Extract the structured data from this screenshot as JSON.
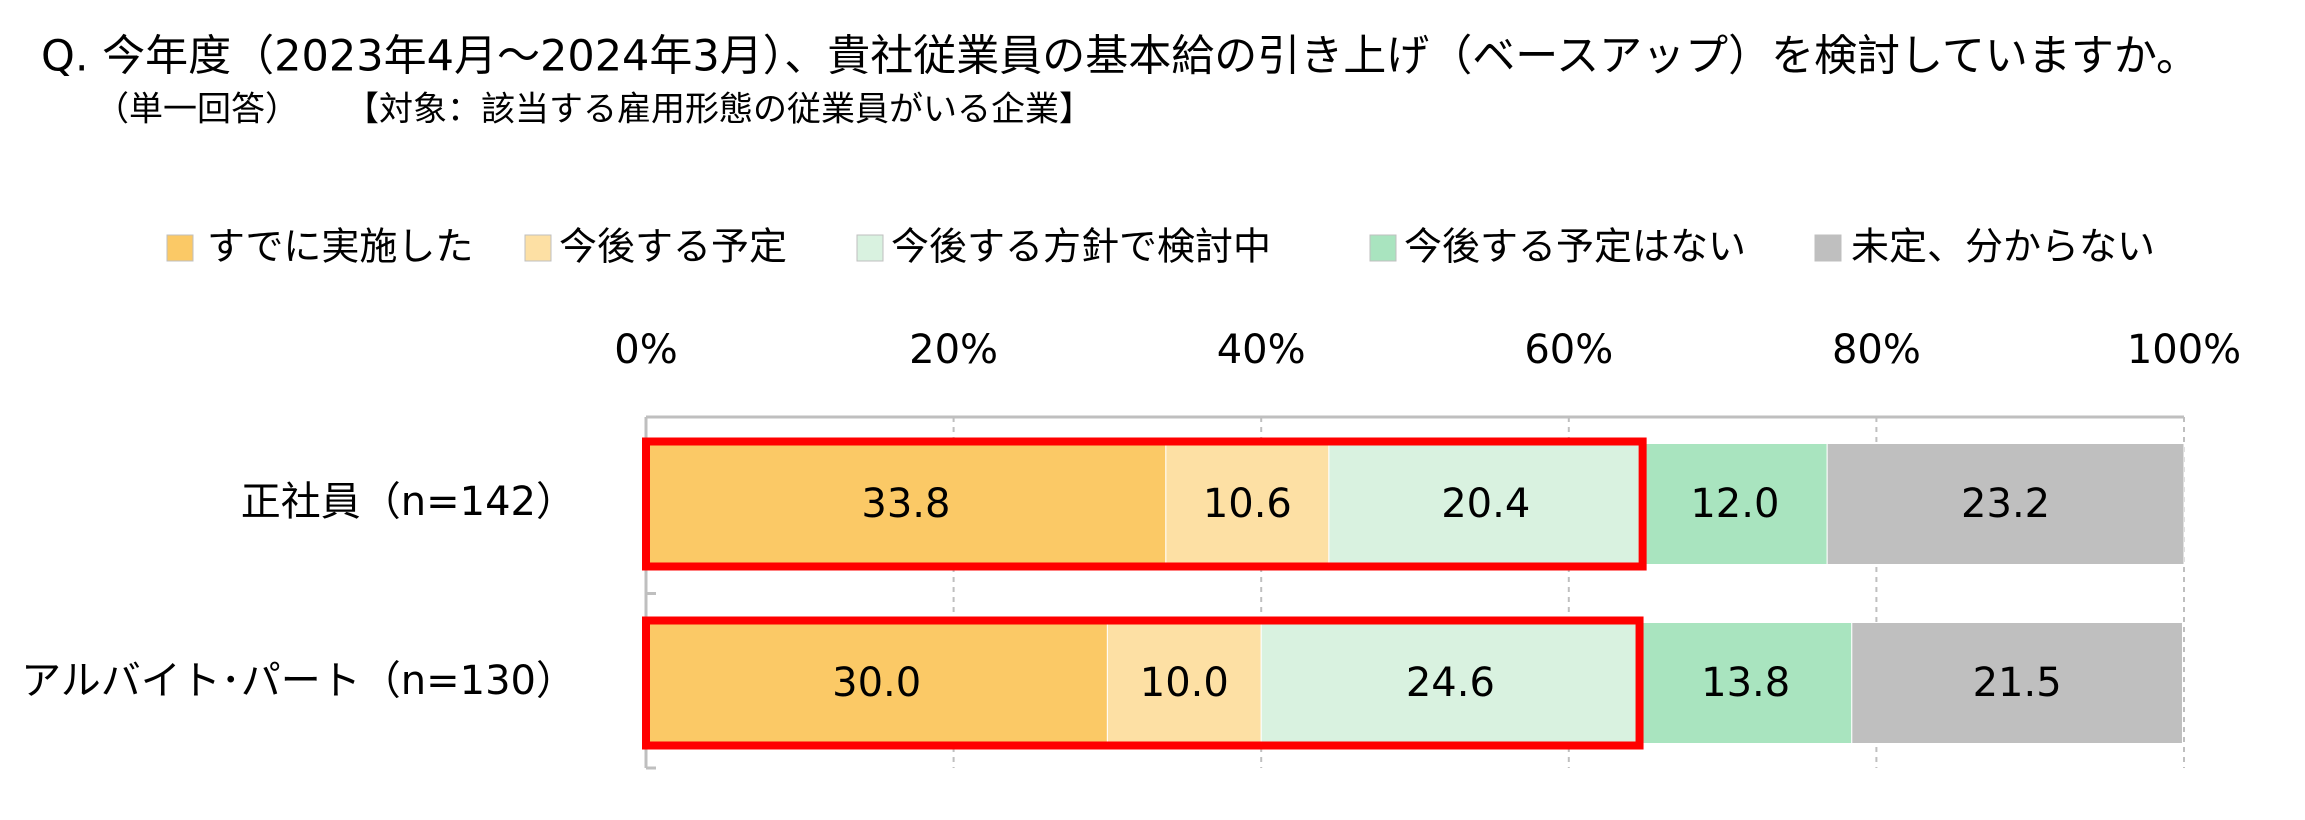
{
  "chart_data": {
    "type": "stacked-bar-horizontal",
    "title": "Q. 今年度（2023年4月～2024年3月）、貴社従業員の基本給の引き上げ（ベースアップ）を検討していますか。",
    "subtitle": "（単一回答）",
    "note": "【対象：該当する雇用形態の従業員がいる企業】",
    "categories": [
      "正社員（n=142）",
      "アルバイト･パート（n=130）"
    ],
    "series": [
      {
        "name": "すでに実施した",
        "color": "#fbc966",
        "values": [
          33.8,
          30.0
        ],
        "value_labels": [
          "33.8",
          "30.0"
        ]
      },
      {
        "name": "今後する予定",
        "color": "#fde0a4",
        "values": [
          10.6,
          10.0
        ],
        "value_labels": [
          "10.6",
          "10.0"
        ]
      },
      {
        "name": "今後する方針で検討中",
        "color": "#d9f2e0",
        "values": [
          20.4,
          24.6
        ],
        "value_labels": [
          "20.4",
          "24.6"
        ]
      },
      {
        "name": "今後する予定はない",
        "color": "#a9e4bf",
        "values": [
          12.0,
          13.8
        ],
        "value_labels": [
          "12.0",
          "13.8"
        ]
      },
      {
        "name": "未定、分からない",
        "color": "#bfbfbf",
        "values": [
          23.2,
          21.5
        ],
        "value_labels": [
          "23.2",
          "21.5"
        ]
      }
    ],
    "xlim": [
      0,
      100
    ],
    "xticks": [
      {
        "value": 0,
        "label": "0%"
      },
      {
        "value": 20,
        "label": "20%"
      },
      {
        "value": 40,
        "label": "40%"
      },
      {
        "value": 60,
        "label": "60%"
      },
      {
        "value": 80,
        "label": "80%"
      },
      {
        "value": 100,
        "label": "100%"
      }
    ],
    "grid": true,
    "highlight_color": "#ff0000"
  }
}
